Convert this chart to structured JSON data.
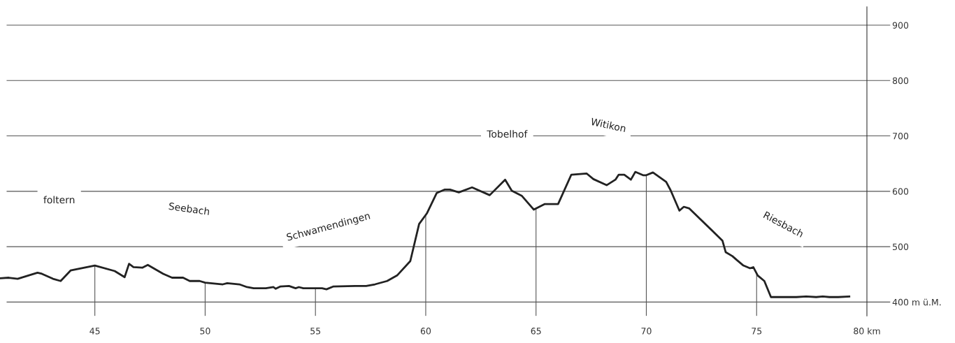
{
  "chart_data": {
    "type": "line",
    "x": [
      40.7,
      41.1,
      41.5,
      42.4,
      42.6,
      43.1,
      43.45,
      43.9,
      45.0,
      45.9,
      46.35,
      46.55,
      46.75,
      47.15,
      47.4,
      48.1,
      48.5,
      49.0,
      49.3,
      49.75,
      50.0,
      50.8,
      51.0,
      51.55,
      51.9,
      52.2,
      52.75,
      53.1,
      53.2,
      53.4,
      53.8,
      54.1,
      54.25,
      54.45,
      55.3,
      55.5,
      55.8,
      56.8,
      57.3,
      57.7,
      58.25,
      58.7,
      59.3,
      59.7,
      60.05,
      60.5,
      60.85,
      61.1,
      61.5,
      62.1,
      62.9,
      63.6,
      63.9,
      64.35,
      64.9,
      65.4,
      66.0,
      66.6,
      67.3,
      67.6,
      68.2,
      68.6,
      68.75,
      69.0,
      69.3,
      69.5,
      69.85,
      70.0,
      70.3,
      70.9,
      71.1,
      71.5,
      71.7,
      71.95,
      73.45,
      73.6,
      73.9,
      74.1,
      74.4,
      74.7,
      74.85,
      75.05,
      75.35,
      75.65,
      76.0,
      76.8,
      77.25,
      77.7,
      78.0,
      78.3,
      78.7,
      79.2
    ],
    "series": [
      {
        "color": "#222222",
        "values": [
          443,
          444,
          442,
          453,
          451,
          442,
          438,
          457,
          466,
          456,
          445,
          469,
          463,
          462,
          467,
          451,
          444,
          444,
          438,
          438,
          435,
          432,
          434,
          432,
          427,
          425,
          425,
          427,
          424,
          428,
          429,
          425,
          427,
          425,
          425,
          423,
          428,
          429,
          429,
          432,
          438,
          448,
          474,
          541,
          560,
          597,
          603,
          603,
          598,
          607,
          593,
          621,
          601,
          592,
          567,
          577,
          577,
          630,
          632,
          622,
          611,
          621,
          630,
          630,
          621,
          635,
          629,
          629,
          634,
          617,
          602,
          565,
          572,
          569,
          511,
          490,
          483,
          476,
          466,
          461,
          463,
          448,
          438,
          409,
          409,
          409,
          410,
          409,
          410,
          409,
          409,
          410
        ]
      }
    ],
    "xlim": [
      40.7,
      80
    ],
    "ylim": [
      375,
      933
    ],
    "xticks": [
      45,
      50,
      55,
      60,
      65,
      70,
      75,
      {
        "value": 80,
        "label": "80 km"
      }
    ],
    "yticks": [
      {
        "value": 400,
        "label": "400 m ü.M."
      },
      500,
      600,
      700,
      800,
      900
    ],
    "grid": true,
    "legend": false,
    "marker": "none",
    "line_style": "solid",
    "annotations": [
      "foltern",
      "Seebach",
      "Schwamendingen",
      "Tobelhof",
      "Witikon",
      "Riesbach"
    ]
  }
}
